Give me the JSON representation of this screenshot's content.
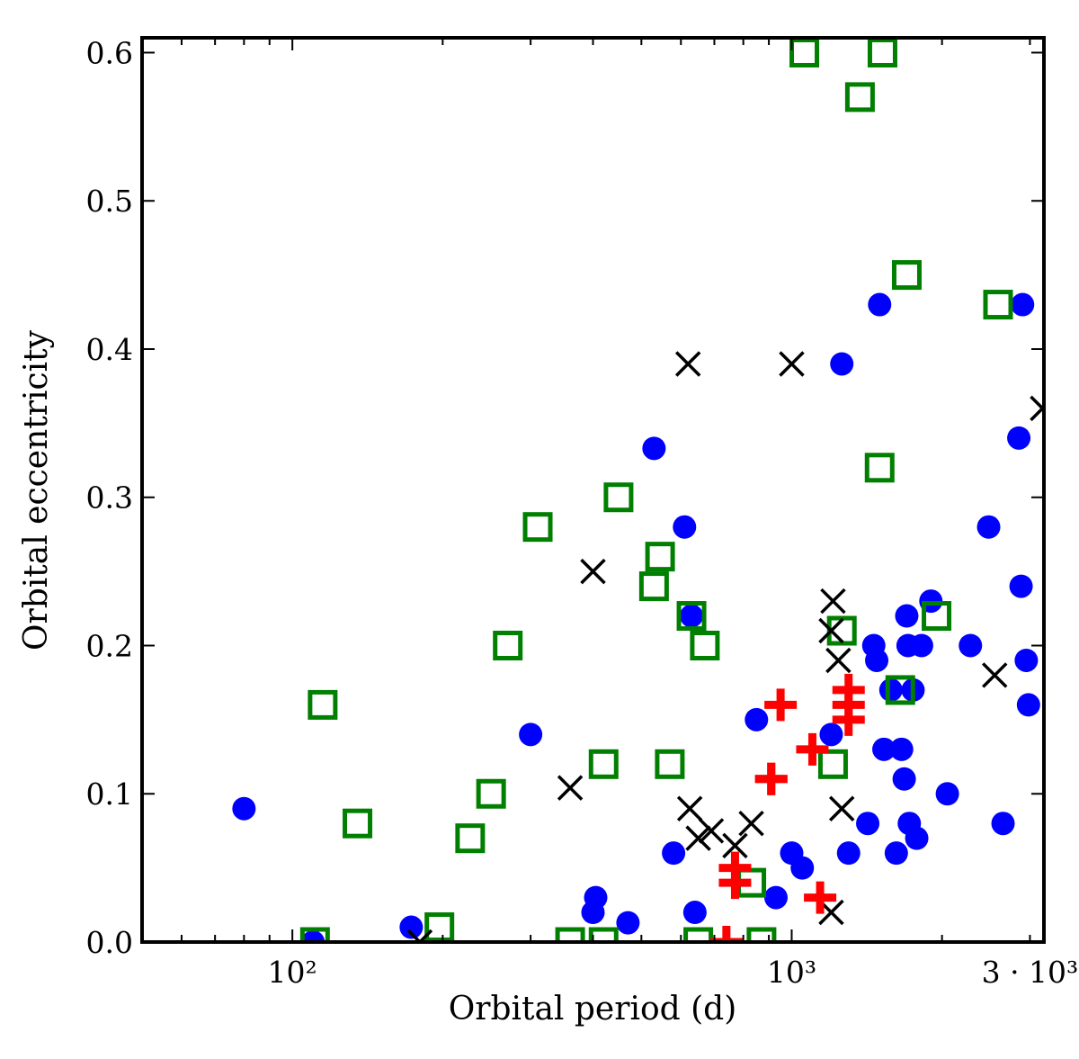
{
  "chart_data": {
    "type": "scatter",
    "title": "",
    "xlabel": "Orbital period (d)",
    "ylabel": "Orbital eccentricity",
    "xscale": "log",
    "xlim": [
      50,
      3200
    ],
    "ylim": [
      0.0,
      0.61
    ],
    "grid": false,
    "x_ticks": [
      {
        "value": 100,
        "label": "10²"
      },
      {
        "value": 1000,
        "label": "10³"
      },
      {
        "value": 3000,
        "label": "3 · 10³"
      }
    ],
    "y_ticks": [
      {
        "value": 0.0,
        "label": "0.0"
      },
      {
        "value": 0.1,
        "label": "0.1"
      },
      {
        "value": 0.2,
        "label": "0.2"
      },
      {
        "value": 0.3,
        "label": "0.3"
      },
      {
        "value": 0.4,
        "label": "0.4"
      },
      {
        "value": 0.5,
        "label": "0.5"
      },
      {
        "value": 0.6,
        "label": "0.6"
      }
    ],
    "series": [
      {
        "name": "blue-circles",
        "marker": "circle",
        "color": "#0000ff",
        "points": [
          [
            80,
            0.09
          ],
          [
            110,
            0.0
          ],
          [
            173,
            0.01
          ],
          [
            300,
            0.14
          ],
          [
            400,
            0.02
          ],
          [
            405,
            0.03
          ],
          [
            470,
            0.013
          ],
          [
            530,
            0.333
          ],
          [
            580,
            0.06
          ],
          [
            610,
            0.28
          ],
          [
            630,
            0.22
          ],
          [
            640,
            0.02
          ],
          [
            850,
            0.15
          ],
          [
            930,
            0.03
          ],
          [
            1000,
            0.06
          ],
          [
            1050,
            0.05
          ],
          [
            1200,
            0.14
          ],
          [
            1260,
            0.39
          ],
          [
            1300,
            0.06
          ],
          [
            1420,
            0.08
          ],
          [
            1460,
            0.2
          ],
          [
            1480,
            0.19
          ],
          [
            1500,
            0.43
          ],
          [
            1530,
            0.13
          ],
          [
            1580,
            0.17
          ],
          [
            1620,
            0.06
          ],
          [
            1660,
            0.13
          ],
          [
            1680,
            0.11
          ],
          [
            1700,
            0.22
          ],
          [
            1710,
            0.2
          ],
          [
            1720,
            0.08
          ],
          [
            1750,
            0.17
          ],
          [
            1780,
            0.07
          ],
          [
            1820,
            0.2
          ],
          [
            1900,
            0.23
          ],
          [
            2050,
            0.1
          ],
          [
            2280,
            0.2
          ],
          [
            2480,
            0.28
          ],
          [
            2650,
            0.08
          ],
          [
            2850,
            0.34
          ],
          [
            2880,
            0.24
          ],
          [
            2900,
            0.43
          ],
          [
            2950,
            0.19
          ],
          [
            2980,
            0.16
          ]
        ]
      },
      {
        "name": "green-squares",
        "marker": "square",
        "color": "#007f00",
        "points": [
          [
            111,
            0.0
          ],
          [
            115,
            0.16
          ],
          [
            135,
            0.08
          ],
          [
            197,
            0.01
          ],
          [
            227,
            0.07
          ],
          [
            250,
            0.1
          ],
          [
            270,
            0.2
          ],
          [
            310,
            0.28
          ],
          [
            360,
            0.0
          ],
          [
            420,
            0.12
          ],
          [
            420,
            0.0
          ],
          [
            450,
            0.3
          ],
          [
            530,
            0.24
          ],
          [
            545,
            0.26
          ],
          [
            570,
            0.12
          ],
          [
            630,
            0.22
          ],
          [
            650,
            0.0
          ],
          [
            670,
            0.2
          ],
          [
            830,
            0.04
          ],
          [
            870,
            0.0
          ],
          [
            1060,
            0.6
          ],
          [
            1210,
            0.12
          ],
          [
            1260,
            0.21
          ],
          [
            1370,
            0.57
          ],
          [
            1500,
            0.32
          ],
          [
            1520,
            0.6
          ],
          [
            1650,
            0.17
          ],
          [
            1700,
            0.45
          ],
          [
            1950,
            0.22
          ],
          [
            2590,
            0.43
          ]
        ]
      },
      {
        "name": "black-crosses",
        "marker": "x",
        "color": "#000000",
        "points": [
          [
            180,
            0.0
          ],
          [
            360,
            0.104
          ],
          [
            400,
            0.25
          ],
          [
            620,
            0.39
          ],
          [
            625,
            0.09
          ],
          [
            650,
            0.07
          ],
          [
            690,
            0.075
          ],
          [
            770,
            0.065
          ],
          [
            830,
            0.08
          ],
          [
            1000,
            0.39
          ],
          [
            1200,
            0.02
          ],
          [
            1210,
            0.23
          ],
          [
            1200,
            0.21
          ],
          [
            1240,
            0.19
          ],
          [
            1260,
            0.09
          ],
          [
            2550,
            0.18
          ],
          [
            3180,
            0.36
          ]
        ]
      },
      {
        "name": "red-plus",
        "marker": "plus",
        "color": "#ff0000",
        "points": [
          [
            740,
            0.0
          ],
          [
            770,
            0.04
          ],
          [
            770,
            0.05
          ],
          [
            910,
            0.11
          ],
          [
            910,
            0.11
          ],
          [
            950,
            0.16
          ],
          [
            1100,
            0.13
          ],
          [
            1140,
            0.03
          ],
          [
            1300,
            0.15
          ],
          [
            1300,
            0.16
          ],
          [
            1300,
            0.17
          ]
        ]
      }
    ]
  }
}
